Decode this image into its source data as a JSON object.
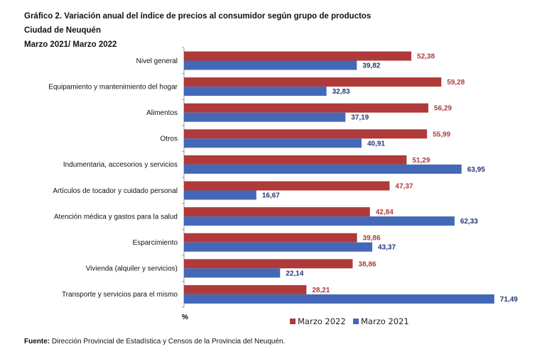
{
  "title": "Gráfico 2. Variación anual del índice de precios al consumidor según grupo de productos",
  "subtitle": "Ciudad de Neuquén",
  "period": "Marzo 2021/ Marzo 2022",
  "footer": {
    "label": "Fuente:",
    "text": " Dirección Provincial de Estadística y Censos de la Provincia del Neuquén."
  },
  "chart_data": {
    "type": "bar",
    "orientation": "horizontal",
    "xlabel": "%",
    "categories": [
      "Nivel general",
      "Equipamiento y mantenimiento del hogar",
      "Alimentos",
      "Otros",
      "Indumentaria, accesorios y servicios",
      "Artículos de tocador y cuidado personal",
      "Atención médica y gastos para la salud",
      "Esparcimiento",
      "Vivienda (alquiler y servicios)",
      "Transporte y servicios para el mismo"
    ],
    "series": [
      {
        "name": "Marzo 2022",
        "color": "#b03a3a",
        "label_color": "#b03a3a",
        "values": [
          52.38,
          59.28,
          56.29,
          55.99,
          51.29,
          47.37,
          42.84,
          39.86,
          38.86,
          28.21
        ],
        "labels": [
          "52,38",
          "59,28",
          "56,29",
          "55,99",
          "51,29",
          "47,37",
          "42,84",
          "39,86",
          "38,86",
          "28,21"
        ]
      },
      {
        "name": "Marzo 2021",
        "color": "#4468b8",
        "label_color": "#26387a",
        "values": [
          39.82,
          32.83,
          37.19,
          40.91,
          63.95,
          16.67,
          62.33,
          43.37,
          22.14,
          71.49
        ],
        "labels": [
          "39,82",
          "32,83",
          "37,19",
          "40,91",
          "63,95",
          "16,67",
          "62,33",
          "43,37",
          "22,14",
          "71,49"
        ]
      }
    ],
    "legend": "bottom",
    "grid": false
  }
}
